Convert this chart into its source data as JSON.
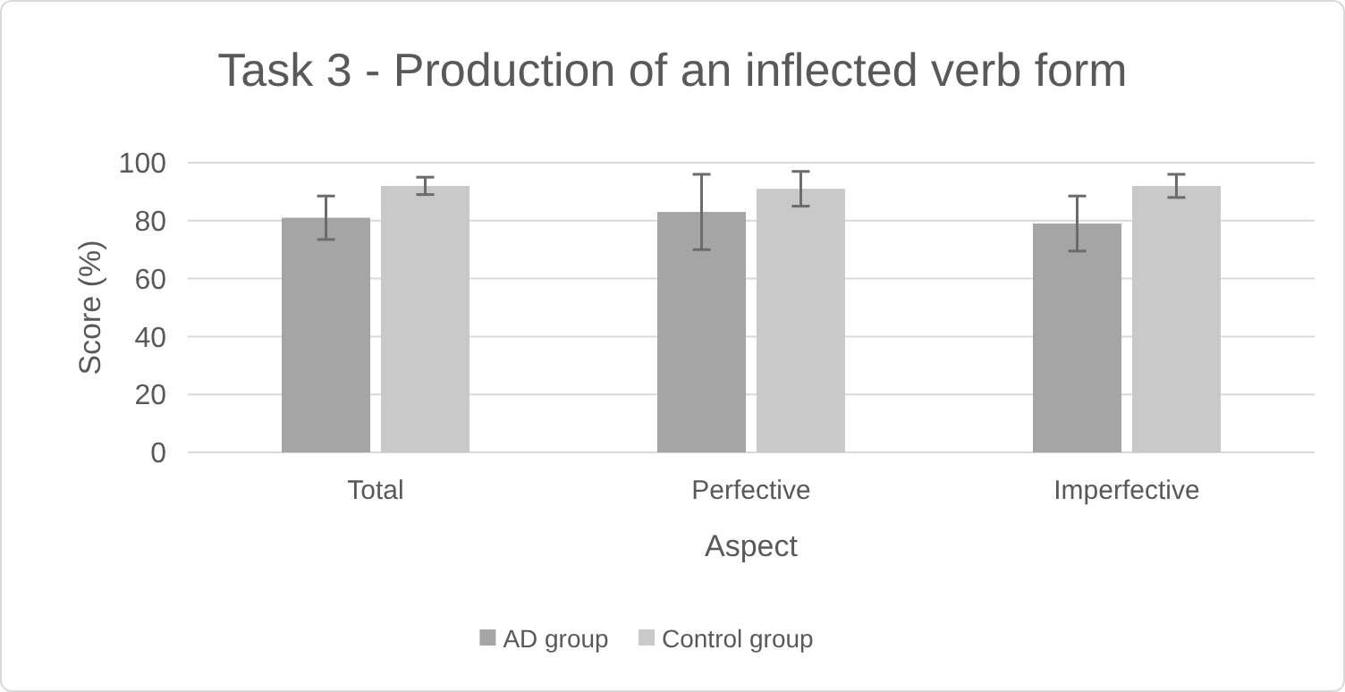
{
  "chart_data": {
    "type": "bar",
    "title": "Task 3 - Production of an inflected verb form",
    "xlabel": "Aspect",
    "ylabel": "Score (%)",
    "categories": [
      "Total",
      "Perfective",
      "Imperfective"
    ],
    "series": [
      {
        "name": "AD group",
        "color": "#a5a5a5",
        "values": [
          81,
          83,
          79
        ],
        "errors": [
          [
            73.5,
            88.5
          ],
          [
            70,
            96
          ],
          [
            69.5,
            88.5
          ]
        ]
      },
      {
        "name": "Control group",
        "color": "#c9c9c9",
        "values": [
          92,
          91,
          92
        ],
        "errors": [
          [
            89,
            95
          ],
          [
            85,
            97
          ],
          [
            88,
            96
          ]
        ]
      }
    ],
    "ylim": [
      0,
      100
    ],
    "yticks": [
      0,
      20,
      40,
      60,
      80,
      100
    ],
    "grid": "y",
    "legend": "bottom"
  }
}
